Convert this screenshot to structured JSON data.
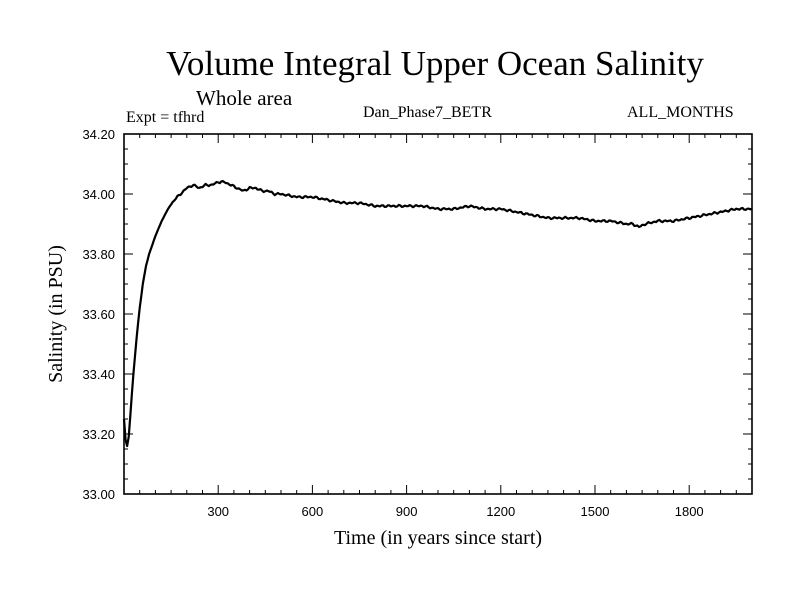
{
  "chart_data": {
    "type": "line",
    "title": "Volume Integral Upper Ocean Salinity",
    "subtitle": "Whole area",
    "experiment_label": "Expt = tfhrd",
    "dataset_label": "Dan_Phase7_BETR",
    "period_label": "ALL_MONTHS",
    "xlabel": "Time (in years since start)",
    "ylabel": "Salinity (in PSU)",
    "xlim": [
      0,
      2000
    ],
    "ylim": [
      33.0,
      34.2
    ],
    "x_ticks": [
      "300",
      "600",
      "900",
      "1200",
      "1500",
      "1800"
    ],
    "y_ticks": [
      "33.00",
      "33.20",
      "33.40",
      "33.60",
      "33.80",
      "34.00",
      "34.20"
    ],
    "grid": false,
    "series": [
      {
        "name": "Salinity",
        "x": [
          0,
          5,
          10,
          15,
          20,
          30,
          40,
          50,
          60,
          70,
          80,
          100,
          120,
          140,
          160,
          180,
          200,
          220,
          240,
          260,
          280,
          300,
          320,
          340,
          360,
          380,
          400,
          420,
          440,
          460,
          480,
          500,
          550,
          600,
          650,
          700,
          750,
          800,
          850,
          900,
          950,
          1000,
          1050,
          1100,
          1150,
          1200,
          1250,
          1300,
          1350,
          1400,
          1450,
          1500,
          1550,
          1600,
          1620,
          1640,
          1660,
          1700,
          1750,
          1800,
          1850,
          1900,
          1950,
          2000
        ],
        "values": [
          33.25,
          33.18,
          33.16,
          33.19,
          33.26,
          33.4,
          33.52,
          33.62,
          33.7,
          33.76,
          33.8,
          33.86,
          33.91,
          33.95,
          33.98,
          34.0,
          34.02,
          34.03,
          34.02,
          34.03,
          34.03,
          34.04,
          34.04,
          34.03,
          34.02,
          34.01,
          34.02,
          34.02,
          34.01,
          34.01,
          34.0,
          34.0,
          33.99,
          33.99,
          33.98,
          33.97,
          33.97,
          33.96,
          33.96,
          33.96,
          33.96,
          33.95,
          33.95,
          33.96,
          33.95,
          33.95,
          33.94,
          33.93,
          33.92,
          33.92,
          33.92,
          33.91,
          33.91,
          33.9,
          33.9,
          33.89,
          33.9,
          33.91,
          33.91,
          33.92,
          33.93,
          33.94,
          33.95,
          33.95
        ]
      }
    ]
  }
}
